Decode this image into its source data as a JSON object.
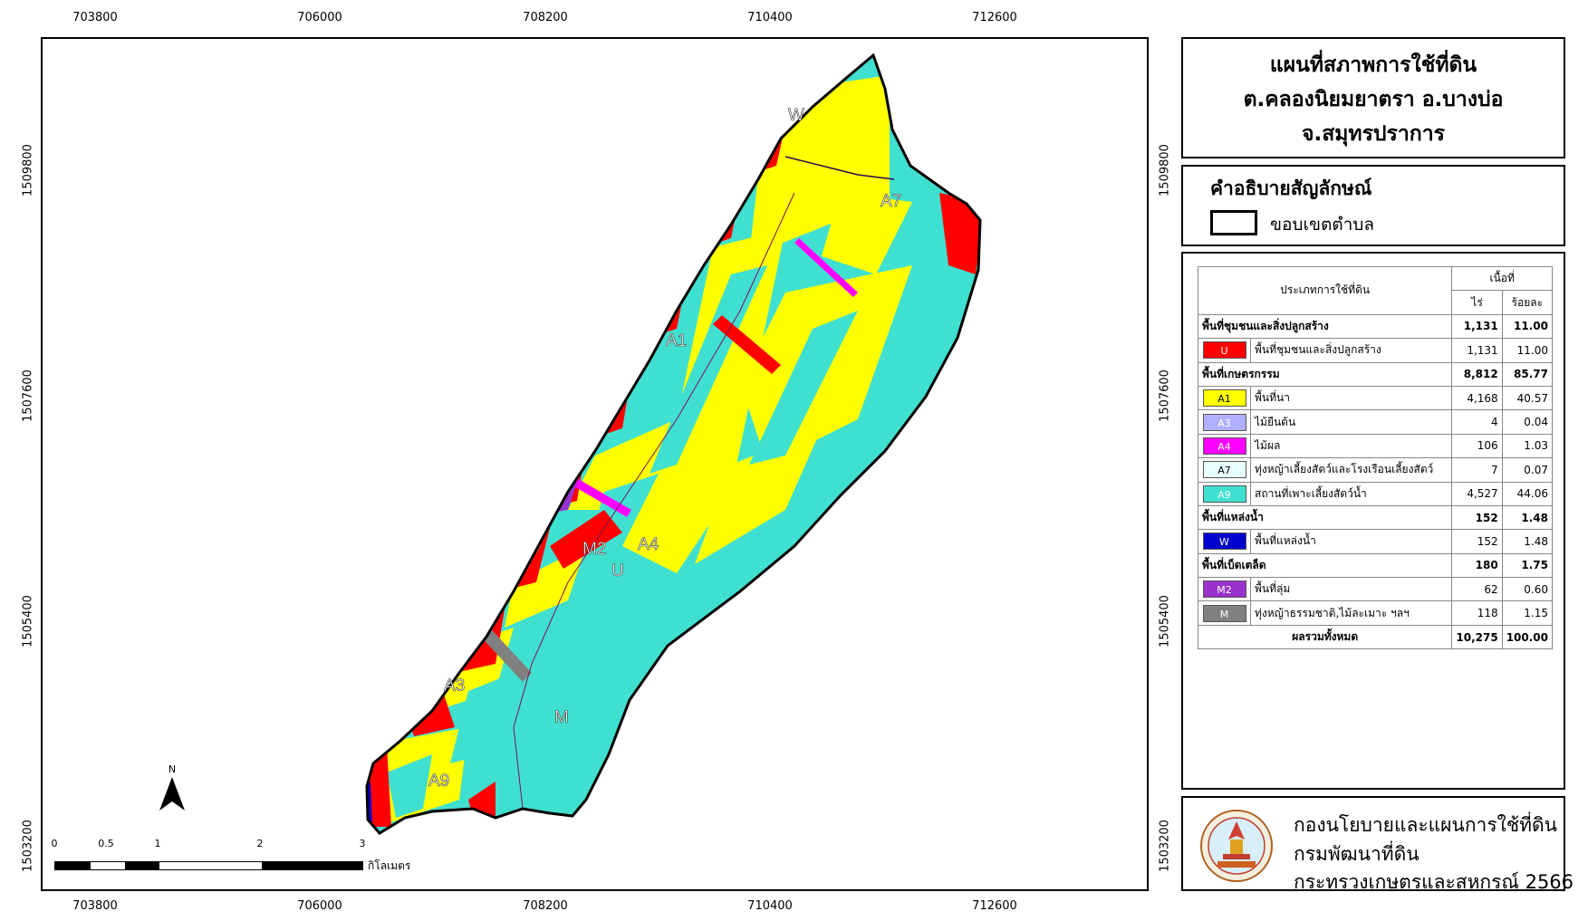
{
  "title": {
    "line1": "แผนที่สภาพการใช้ที่ดิน",
    "line2": "ต.คลองนิยมยาตรา อ.บางบ่อ",
    "line3": "จ.สมุทรปราการ"
  },
  "legend": {
    "title": "คำอธิบายสัญลักษณ์",
    "boundary_label": "ขอบเขตตำบล"
  },
  "grid": {
    "x_ticks": [
      "703800",
      "706000",
      "708200",
      "710400",
      "712600"
    ],
    "y_ticks": [
      "1509800",
      "1507600",
      "1505400",
      "1503200"
    ]
  },
  "scale": {
    "ticks": [
      "0",
      "0.5",
      "1",
      "2",
      "3"
    ],
    "unit": "กิโลเมตร"
  },
  "north": {
    "label": "N"
  },
  "map_labels": {
    "W": "W",
    "A7": "A7",
    "A1": "A1",
    "M2": "M2",
    "A4": "A4",
    "U": "U",
    "A3": "A3",
    "M": "M",
    "A9": "A9"
  },
  "table": {
    "header_type": "ประเภทการใช้ที่ดิน",
    "header_area": "เนื้อที่",
    "header_rai": "ไร่",
    "header_percent": "ร้อยละ",
    "rows": [
      {
        "kind": "category",
        "label": "พื้นที่ชุมชนและสิ่งปลูกสร้าง",
        "rai": "1,131",
        "percent": "11.00"
      },
      {
        "kind": "item",
        "code": "U",
        "color": "#ff0000",
        "text_color": "#ffffff",
        "label": "พื้นที่ชุมชนและสิ่งปลูกสร้าง",
        "rai": "1,131",
        "percent": "11.00"
      },
      {
        "kind": "category",
        "label": "พื้นที่เกษตรกรรม",
        "rai": "8,812",
        "percent": "85.77"
      },
      {
        "kind": "item",
        "code": "A1",
        "color": "#ffff00",
        "text_color": "#000000",
        "label": "พื้นที่นา",
        "rai": "4,168",
        "percent": "40.57"
      },
      {
        "kind": "item",
        "code": "A3",
        "color": "#b0b0ff",
        "text_color": "#ffffff",
        "label": "ไม้ยืนต้น",
        "rai": "4",
        "percent": "0.04"
      },
      {
        "kind": "item",
        "code": "A4",
        "color": "#ff00ff",
        "text_color": "#ffffff",
        "label": "ไม้ผล",
        "rai": "106",
        "percent": "1.03"
      },
      {
        "kind": "item",
        "code": "A7",
        "color": "#e8ffff",
        "text_color": "#000000",
        "label": "ทุ่งหญ้าเลี้ยงสัตว์และโรงเรือนเลี้ยงสัตว์",
        "rai": "7",
        "percent": "0.07"
      },
      {
        "kind": "item",
        "code": "A9",
        "color": "#40e0d0",
        "text_color": "#ffffff",
        "label": "สถานที่เพาะเลี้ยงสัตว์น้ำ",
        "rai": "4,527",
        "percent": "44.06"
      },
      {
        "kind": "category",
        "label": "พื้นที่แหล่งน้ำ",
        "rai": "152",
        "percent": "1.48"
      },
      {
        "kind": "item",
        "code": "W",
        "color": "#0000cc",
        "text_color": "#ffffff",
        "label": "พื้นที่แหล่งน้ำ",
        "rai": "152",
        "percent": "1.48"
      },
      {
        "kind": "category",
        "label": "พื้นที่เบ็ดเตล็ด",
        "rai": "180",
        "percent": "1.75"
      },
      {
        "kind": "item",
        "code": "M2",
        "color": "#9932cc",
        "text_color": "#ffffff",
        "label": "พื้นที่ลุ่ม",
        "rai": "62",
        "percent": "0.60"
      },
      {
        "kind": "item",
        "code": "M",
        "color": "#808080",
        "text_color": "#ffffff",
        "label": "ทุ่งหญ้าธรรมชาติ,ไม้ละเมาะ ฯลฯ",
        "rai": "118",
        "percent": "1.15"
      }
    ],
    "total_label": "ผลรวมทั้งหมด",
    "total_rai": "10,275",
    "total_percent": "100.00"
  },
  "agency": {
    "line1": "กองนโยบายและแผนการใช้ที่ดิน",
    "line2": "กรมพัฒนาที่ดิน",
    "line3": "กระทรวงเกษตรและสหกรณ์ 2566"
  },
  "colors": {
    "U": "#ff0000",
    "A1": "#ffff00",
    "A4": "#ff00ff",
    "A9": "#40e0d0",
    "W": "#0000cc",
    "M2": "#9932cc",
    "M": "#808080"
  }
}
